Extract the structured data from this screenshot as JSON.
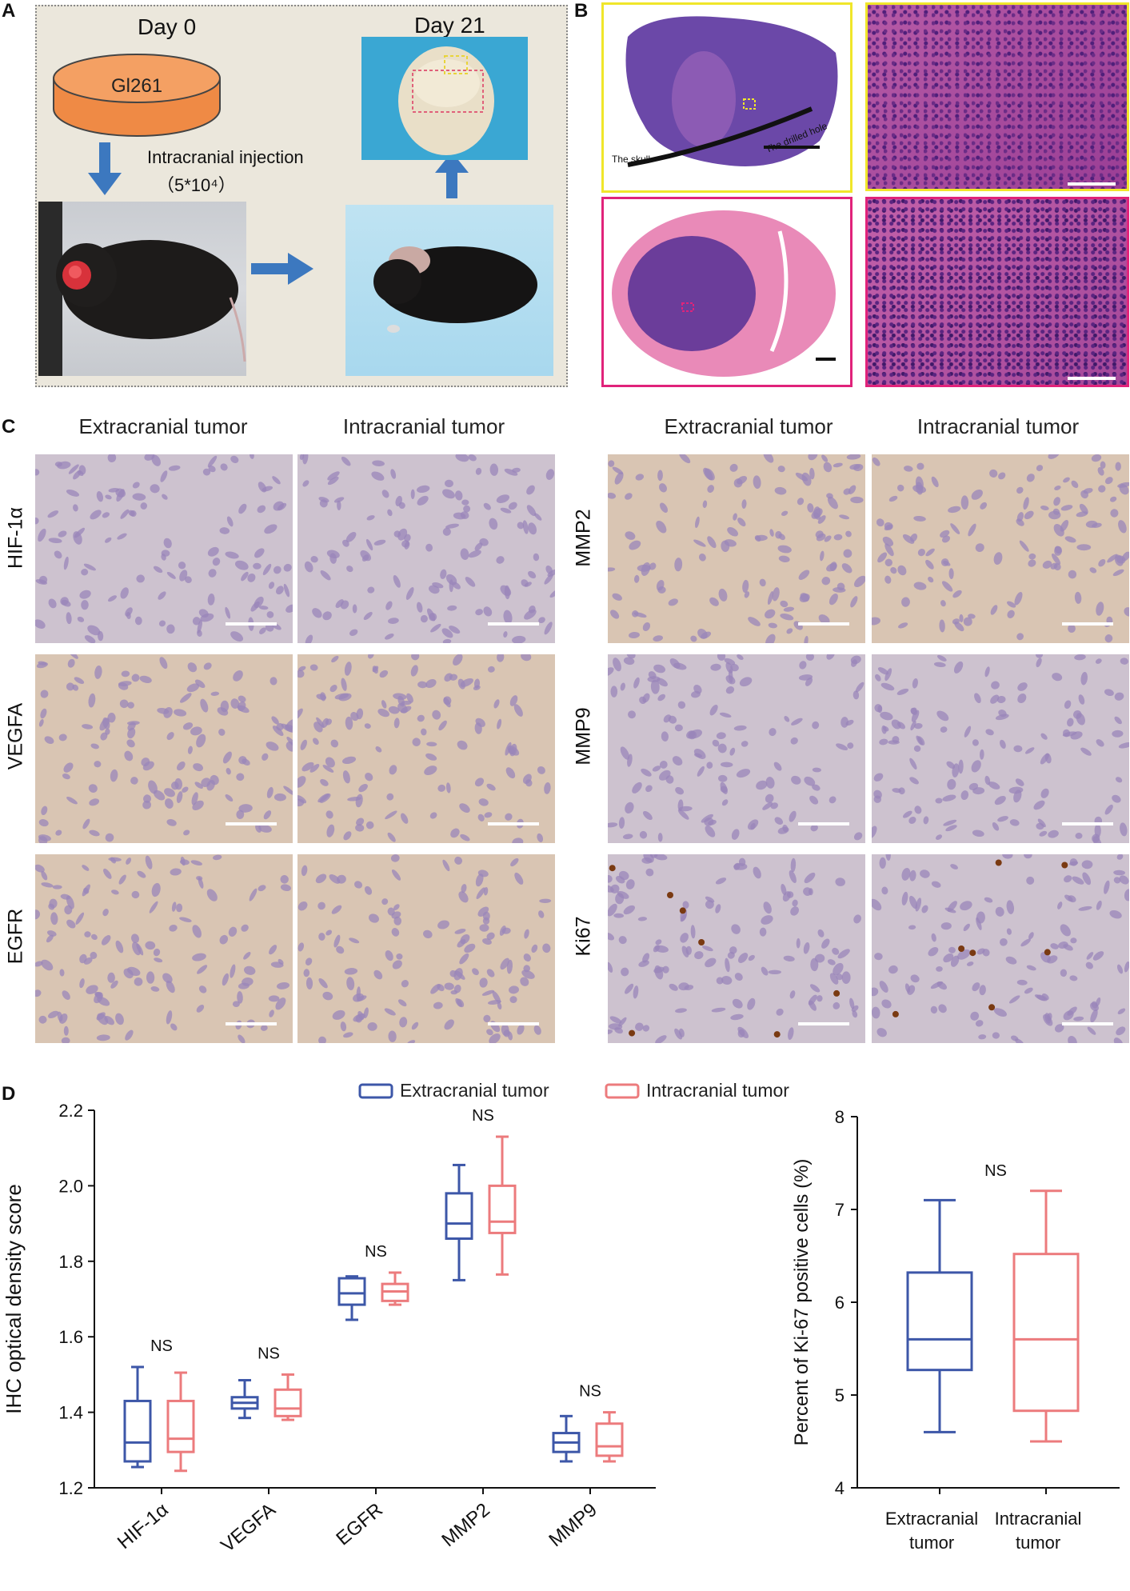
{
  "panel_labels": {
    "a": "A",
    "b": "B",
    "c": "C",
    "d": "D"
  },
  "panelA": {
    "day0": "Day 0",
    "day21": "Day 21",
    "dish_label": "Gl261",
    "injection_label": "Intracranial injection",
    "injection_dose": "（5*10⁴）"
  },
  "panelB": {
    "skull_label": "The skull",
    "hole_label": "The drilled hole"
  },
  "panelC": {
    "col_headers": [
      "Extracranial tumor",
      "Intracranial tumor",
      "Extracranial tumor",
      "Intracranial tumor"
    ],
    "left_rows": [
      "HIF-1α",
      "VEGFA",
      "EGFR"
    ],
    "right_rows": [
      "MMP2",
      "MMP9",
      "Ki67"
    ]
  },
  "colors": {
    "extracranial": "#3d57a8",
    "intracranial": "#ec7b7d",
    "he_purple": "#6a3d98",
    "dish_orange": "#ef8a45"
  },
  "chart_data": [
    {
      "type": "box",
      "ylabel": "IHC optical density score",
      "ylim": [
        1.2,
        2.2
      ],
      "yticks": [
        "1.2",
        "1.4",
        "1.6",
        "1.8",
        "2.0",
        "2.2"
      ],
      "categories": [
        "HIF-1α",
        "VEGFA",
        "EGFR",
        "MMP2",
        "MMP9"
      ],
      "legend": [
        "Extracranial tumor",
        "Intracranial tumor"
      ],
      "annotations": [
        "NS",
        "NS",
        "NS",
        "NS",
        "NS"
      ],
      "series": [
        {
          "name": "Extracranial tumor",
          "boxes": [
            {
              "min": 1.255,
              "q1": 1.27,
              "median": 1.32,
              "q3": 1.43,
              "max": 1.52
            },
            {
              "min": 1.385,
              "q1": 1.41,
              "median": 1.425,
              "q3": 1.44,
              "max": 1.485
            },
            {
              "min": 1.645,
              "q1": 1.685,
              "median": 1.715,
              "q3": 1.755,
              "max": 1.76
            },
            {
              "min": 1.75,
              "q1": 1.86,
              "median": 1.9,
              "q3": 1.98,
              "max": 2.055
            },
            {
              "min": 1.27,
              "q1": 1.295,
              "median": 1.32,
              "q3": 1.345,
              "max": 1.39
            }
          ]
        },
        {
          "name": "Intracranial tumor",
          "boxes": [
            {
              "min": 1.245,
              "q1": 1.295,
              "median": 1.33,
              "q3": 1.43,
              "max": 1.505
            },
            {
              "min": 1.38,
              "q1": 1.39,
              "median": 1.41,
              "q3": 1.46,
              "max": 1.5
            },
            {
              "min": 1.685,
              "q1": 1.695,
              "median": 1.72,
              "q3": 1.74,
              "max": 1.77
            },
            {
              "min": 1.765,
              "q1": 1.875,
              "median": 1.905,
              "q3": 2.0,
              "max": 2.13
            },
            {
              "min": 1.27,
              "q1": 1.285,
              "median": 1.31,
              "q3": 1.37,
              "max": 1.4
            }
          ]
        }
      ]
    },
    {
      "type": "box",
      "ylabel": "Percent of Ki-67 positive cells (%)",
      "ylim": [
        4,
        8
      ],
      "yticks": [
        "4",
        "5",
        "6",
        "7",
        "8"
      ],
      "categories": [
        "Extracranial tumor",
        "Intracranial tumor"
      ],
      "annotations": [
        "NS"
      ],
      "series": [
        {
          "name": "Extracranial tumor",
          "boxes": [
            {
              "min": 4.6,
              "q1": 5.27,
              "median": 5.6,
              "q3": 6.32,
              "max": 7.1
            }
          ]
        },
        {
          "name": "Intracranial tumor",
          "boxes": [
            {
              "min": 4.5,
              "q1": 4.83,
              "median": 5.6,
              "q3": 6.52,
              "max": 7.2
            }
          ]
        }
      ]
    }
  ]
}
